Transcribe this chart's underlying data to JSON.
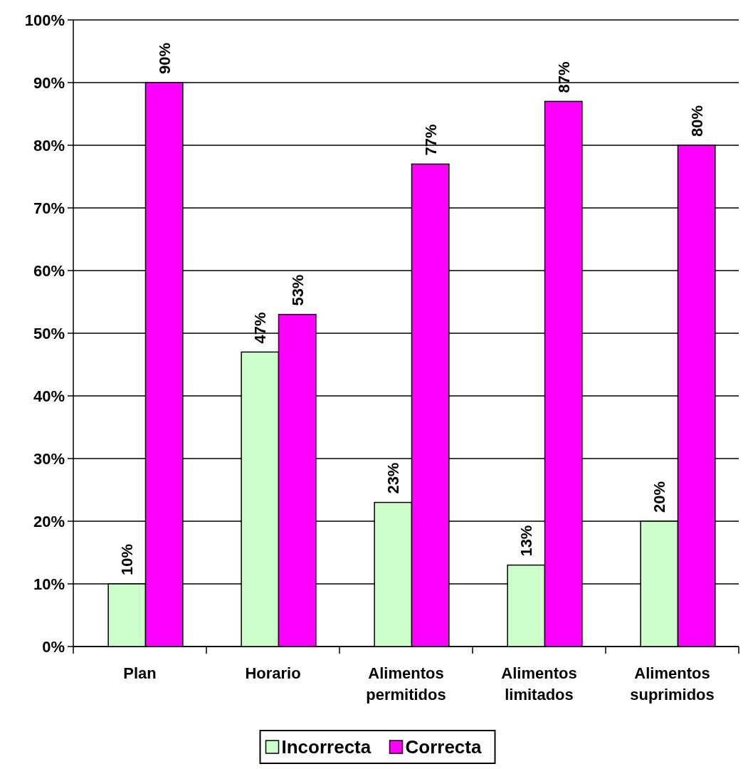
{
  "chart_data": {
    "type": "bar",
    "categories": [
      "Plan",
      "Horario",
      "Alimentos permitidos",
      "Alimentos limitados",
      "Alimentos suprimidos"
    ],
    "series": [
      {
        "name": "Incorrecta",
        "color": "#ccffcc",
        "values": [
          10,
          47,
          23,
          13,
          20
        ],
        "value_labels": [
          "10%",
          "47%",
          "23%",
          "13%",
          "20%"
        ]
      },
      {
        "name": "Correcta",
        "color": "#ff00ff",
        "values": [
          90,
          53,
          77,
          87,
          80
        ],
        "value_labels": [
          "90%",
          "53%",
          "77%",
          "87%",
          "80%"
        ]
      }
    ],
    "ylim": [
      0,
      100
    ],
    "yticks": [
      {
        "value": 0,
        "label": "0%"
      },
      {
        "value": 10,
        "label": "10%"
      },
      {
        "value": 20,
        "label": "20%"
      },
      {
        "value": 30,
        "label": "30%"
      },
      {
        "value": 40,
        "label": "40%"
      },
      {
        "value": 50,
        "label": "50%"
      },
      {
        "value": 60,
        "label": "60%"
      },
      {
        "value": 70,
        "label": "70%"
      },
      {
        "value": 80,
        "label": "80%"
      },
      {
        "value": 90,
        "label": "90%"
      },
      {
        "value": 100,
        "label": "100%"
      }
    ],
    "grid": "y",
    "legend": "bottom"
  }
}
